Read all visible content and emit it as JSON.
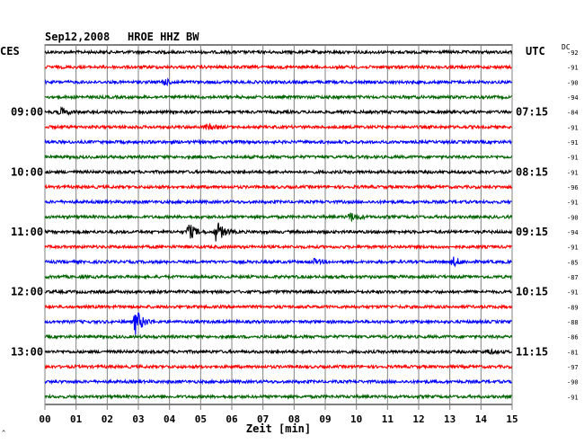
{
  "header": {
    "date": "Sep12,2008",
    "station": "HROE HHZ BW",
    "left_tz": "CES",
    "right_tz": "UTC",
    "dc_label": "DC"
  },
  "footer": {
    "mark": "^"
  },
  "chart_data": {
    "type": "line",
    "title": "Sep12,2008   HROE HHZ BW",
    "xlabel": "Zeit [min]",
    "x_ticks": [
      "00",
      "01",
      "02",
      "03",
      "04",
      "05",
      "06",
      "07",
      "08",
      "09",
      "10",
      "11",
      "12",
      "13",
      "14",
      "15"
    ],
    "xlim": [
      0,
      15
    ],
    "grid": true,
    "trace_colors": [
      "#000000",
      "#ff0000",
      "#0000ff",
      "#006400"
    ],
    "left_hour_labels": [
      {
        "trace": 4,
        "label": "09:00"
      },
      {
        "trace": 8,
        "label": "10:00"
      },
      {
        "trace": 12,
        "label": "11:00"
      },
      {
        "trace": 16,
        "label": "12:00"
      },
      {
        "trace": 20,
        "label": "13:00"
      }
    ],
    "right_hour_labels": [
      {
        "trace": 4,
        "label": "07:15"
      },
      {
        "trace": 8,
        "label": "08:15"
      },
      {
        "trace": 12,
        "label": "09:15"
      },
      {
        "trace": 16,
        "label": "10:15"
      },
      {
        "trace": 20,
        "label": "11:15"
      }
    ],
    "dc_offsets": [
      "-92",
      "-91",
      "-90",
      "-94",
      "-84",
      "-91",
      "-91",
      "-91",
      "-91",
      "-96",
      "-91",
      "-90",
      "-94",
      "-91",
      "-85",
      "-87",
      "-91",
      "-89",
      "-88",
      "-86",
      "-81",
      "-97",
      "-90",
      "-91"
    ],
    "events": [
      {
        "trace": 2,
        "at_min": 3.8,
        "amplitude": 0.25
      },
      {
        "trace": 4,
        "at_min": 0.5,
        "amplitude": 0.3
      },
      {
        "trace": 5,
        "at_min": 5.2,
        "amplitude": 0.2
      },
      {
        "trace": 11,
        "at_min": 9.8,
        "amplitude": 0.35
      },
      {
        "trace": 12,
        "at_min": 4.6,
        "amplitude": 0.65
      },
      {
        "trace": 12,
        "at_min": 5.5,
        "amplitude": 0.85
      },
      {
        "trace": 14,
        "at_min": 8.6,
        "amplitude": 0.2
      },
      {
        "trace": 14,
        "at_min": 13.1,
        "amplitude": 0.35
      },
      {
        "trace": 18,
        "at_min": 2.9,
        "amplitude": 1.0
      },
      {
        "trace": 20,
        "at_min": 14.2,
        "amplitude": 0.15
      }
    ]
  }
}
